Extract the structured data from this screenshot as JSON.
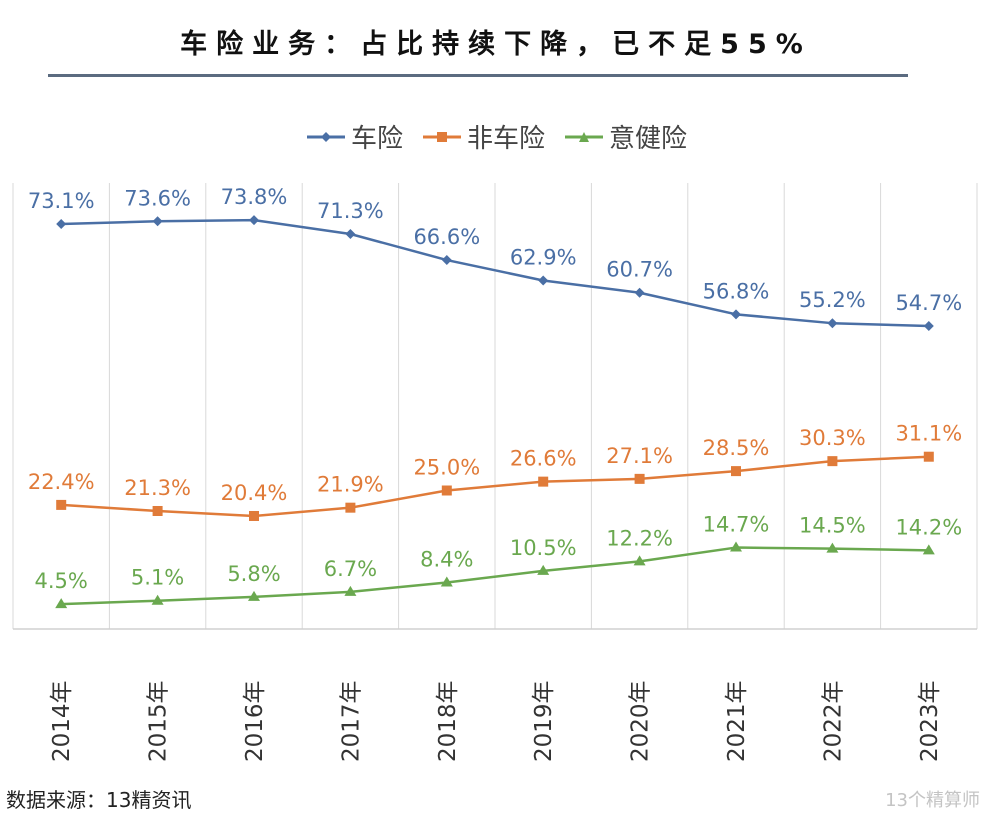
{
  "title": "车险业务：占比持续下降，已不足55%",
  "source": "数据来源：13精资讯",
  "watermark": "13个精算师",
  "colors": {
    "title_rule": "#5b6b80",
    "grid": "#d9d9d9",
    "axis": "#d0d0d0"
  },
  "chart_data": {
    "type": "line",
    "title": "车险业务：占比持续下降，已不足55%",
    "xlabel": "",
    "ylabel": "",
    "categories": [
      "2014年",
      "2015年",
      "2016年",
      "2017年",
      "2018年",
      "2019年",
      "2020年",
      "2021年",
      "2022年",
      "2023年"
    ],
    "ylim": [
      0,
      80
    ],
    "grid": "vertical",
    "legend_position": "top-center",
    "series": [
      {
        "name": "车险",
        "color": "#4a6fa5",
        "marker": "diamond",
        "values": [
          73.1,
          73.6,
          73.8,
          71.3,
          66.6,
          62.9,
          60.7,
          56.8,
          55.2,
          54.7
        ],
        "labels": [
          "73.1%",
          "73.6%",
          "73.8%",
          "71.3%",
          "66.6%",
          "62.9%",
          "60.7%",
          "56.8%",
          "55.2%",
          "54.7%"
        ]
      },
      {
        "name": "非车险",
        "color": "#e07b39",
        "marker": "square",
        "values": [
          22.4,
          21.3,
          20.4,
          21.9,
          25.0,
          26.6,
          27.1,
          28.5,
          30.3,
          31.1
        ],
        "labels": [
          "22.4%",
          "21.3%",
          "20.4%",
          "21.9%",
          "25.0%",
          "26.6%",
          "27.1%",
          "28.5%",
          "30.3%",
          "31.1%"
        ]
      },
      {
        "name": "意健险",
        "color": "#6aa84f",
        "marker": "triangle",
        "values": [
          4.5,
          5.1,
          5.8,
          6.7,
          8.4,
          10.5,
          12.2,
          14.7,
          14.5,
          14.2
        ],
        "labels": [
          "4.5%",
          "5.1%",
          "5.8%",
          "6.7%",
          "8.4%",
          "10.5%",
          "12.2%",
          "14.7%",
          "14.5%",
          "14.2%"
        ]
      }
    ]
  }
}
